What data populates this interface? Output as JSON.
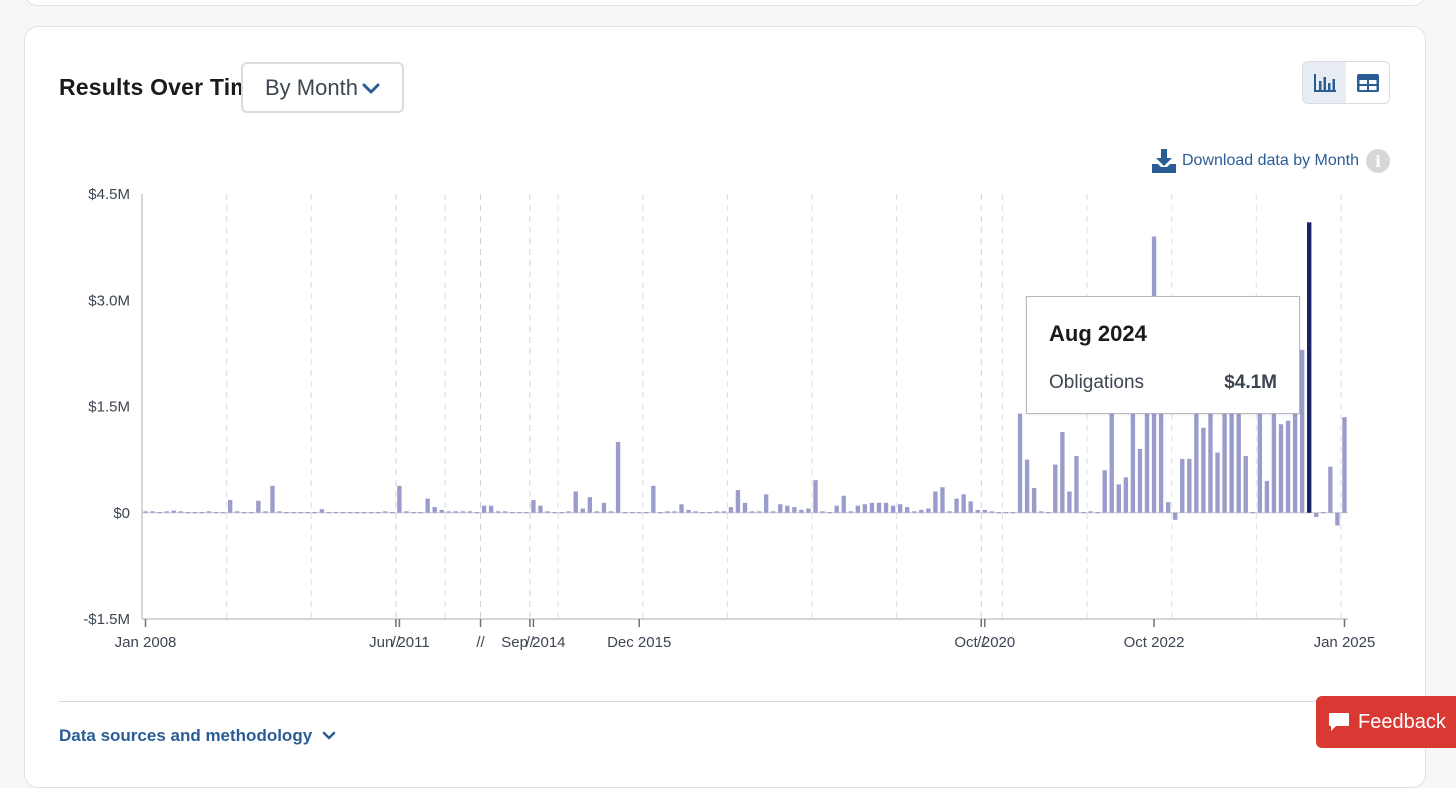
{
  "header": {
    "title": "Results Over Time",
    "period_selected": "By Month"
  },
  "toolbar": {
    "view_options": [
      "chart-view",
      "table-view"
    ],
    "download_label": "Download data by Month"
  },
  "tooltip": {
    "title": "Aug 2024",
    "label": "Obligations",
    "value": "$4.1M"
  },
  "footer": {
    "methodology_label": "Data sources and methodology",
    "feedback_label": "Feedback"
  },
  "colors": {
    "bar": "#9a9ccb",
    "bar_highlight": "#1a2366",
    "accent": "#2a5d95",
    "feedback": "#d83933"
  },
  "chart_data": {
    "type": "bar",
    "title": "",
    "ylabel": "",
    "xlabel": "",
    "ylim": [
      -1.5,
      4.5
    ],
    "y_unit": "$M",
    "y_ticks": [
      4.5,
      3.0,
      1.5,
      0,
      -1.5
    ],
    "y_tick_labels": [
      "$4.5M",
      "$3.0M",
      "$1.5M",
      "$0",
      "-$1.5M"
    ],
    "x_tick_labels": [
      "Jan 2008",
      "//",
      "//",
      "Jun 2011",
      "//",
      "//",
      "Sep 2014",
      "Dec 2015",
      "//",
      "//",
      "//",
      "//",
      "Oct 2020",
      "//",
      "Oct 2022",
      "//",
      "Jan 2025"
    ],
    "highlight": "Aug 2024",
    "grid": false,
    "series": [
      {
        "values": [
          0.02,
          0.02,
          0.01,
          0.02,
          0.03,
          0.02,
          0.01,
          0.01,
          0.01,
          0.02,
          0.01,
          0.01,
          0.18,
          0.02,
          0.01,
          0.01,
          0.17,
          0.02,
          0.38,
          0.02,
          0.01,
          0.01,
          0.01,
          0.01,
          0.01,
          0.05,
          0.01,
          0.01,
          0.01,
          0.01,
          0.01,
          0.01,
          0.01,
          0.01,
          0.02,
          0.01,
          0.38,
          0.02,
          0.01,
          0.01,
          0.2,
          0.08,
          0.04,
          0.02,
          0.02,
          0.02,
          0.02,
          0.01,
          0.1,
          0.1,
          0.02,
          0.02,
          0.01,
          0.01,
          0.01,
          0.18,
          0.1,
          0.02,
          0.01,
          0.01,
          0.02,
          0.3,
          0.06,
          0.22,
          0.02,
          0.14,
          0.02,
          1.0,
          0.01,
          0.01,
          0.01,
          0.01,
          0.38,
          0.01,
          0.02,
          0.02,
          0.12,
          0.04,
          0.02,
          0.01,
          0.01,
          0.02,
          0.02,
          0.08,
          0.32,
          0.14,
          0.02,
          0.02,
          0.26,
          0.02,
          0.12,
          0.1,
          0.08,
          0.04,
          0.06,
          0.46,
          0.02,
          0.01,
          0.1,
          0.24,
          0.02,
          0.1,
          0.12,
          0.14,
          0.14,
          0.14,
          0.1,
          0.12,
          0.08,
          0.02,
          0.04,
          0.06,
          0.3,
          0.36,
          0.02,
          0.2,
          0.26,
          0.16,
          0.04,
          0.04,
          0.02,
          0.01,
          0.01,
          0.01,
          1.4,
          0.75,
          0.35,
          0.02,
          0.01,
          0.68,
          1.14,
          0.3,
          0.8,
          0.01,
          0.02,
          0.01,
          0.6,
          1.4,
          0.4,
          0.5,
          1.4,
          0.9,
          1.4,
          3.9,
          1.4,
          0.15,
          -0.1,
          0.76,
          0.76,
          1.4,
          1.2,
          1.4,
          0.85,
          1.4,
          1.4,
          1.4,
          0.8,
          0.01,
          1.4,
          0.45,
          1.4,
          1.25,
          1.3,
          1.7,
          2.3,
          4.1,
          -0.06,
          0.01,
          0.65,
          -0.18,
          1.35
        ],
        "dates": [
          "2008-01",
          "2008-02",
          "2008-03",
          "2008-04",
          "2008-05",
          "2008-06",
          "2008-07",
          "2008-08",
          "2008-09",
          "2008-10",
          "2008-11",
          "2008-12",
          "2009-01",
          "2009-02",
          "2009-03",
          "2009-04",
          "2009-05",
          "2009-06",
          "2009-07",
          "2009-08",
          "2009-09",
          "2009-10",
          "2009-11",
          "2009-12",
          "2010-01",
          "2010-02",
          "2010-03",
          "2010-04",
          "2010-05",
          "2010-06",
          "2010-07",
          "2010-08",
          "2010-09",
          "2010-10",
          "2010-11",
          "2010-12",
          "2011-06",
          "2011-07",
          "2011-08",
          "2011-09",
          "2011-10",
          "2011-11",
          "2011-12",
          "2012-01",
          "2012-02",
          "2012-03",
          "2012-04",
          "2012-05",
          "2013-06",
          "2013-07",
          "2013-08",
          "2013-09",
          "2013-10",
          "2013-11",
          "2013-12",
          "2014-09",
          "2014-10",
          "2014-11",
          "2014-12",
          "2015-01",
          "2015-02",
          "2015-03",
          "2015-04",
          "2015-05",
          "2015-06",
          "2015-07",
          "2015-08",
          "2015-09",
          "2015-10",
          "2015-11",
          "2015-12",
          "2016-01",
          "2016-02",
          "2016-03",
          "2016-04",
          "2016-05",
          "2016-06",
          "2016-07",
          "2016-08",
          "2016-09",
          "2016-10",
          "2016-11",
          "2016-12",
          "2017-01",
          "2017-02",
          "2017-03",
          "2017-04",
          "2017-05",
          "2017-06",
          "2017-07",
          "2017-08",
          "2017-09",
          "2017-10",
          "2017-11",
          "2017-12",
          "2018-01",
          "2018-02",
          "2018-03",
          "2018-04",
          "2018-05",
          "2018-06",
          "2018-07",
          "2018-08",
          "2018-09",
          "2018-10",
          "2018-11",
          "2018-12",
          "2019-01",
          "2019-02",
          "2019-03",
          "2019-04",
          "2019-05",
          "2019-06",
          "2019-07",
          "2019-08",
          "2019-09",
          "2019-10",
          "2019-11",
          "2019-12",
          "2020-10",
          "2020-11",
          "2020-12",
          "2021-01",
          "2021-02",
          "2021-03",
          "2021-04",
          "2021-05",
          "2021-06",
          "2021-07",
          "2021-08",
          "2021-09",
          "2021-10",
          "2021-11",
          "2021-12",
          "2022-01",
          "2022-02",
          "2022-03",
          "2022-04",
          "2022-05",
          "2022-06",
          "2022-07",
          "2022-08",
          "2022-09",
          "2022-10",
          "2022-11",
          "2022-12",
          "2023-01",
          "2023-02",
          "2023-03",
          "2023-04",
          "2023-05",
          "2023-06",
          "2023-07",
          "2023-08",
          "2023-09",
          "2023-10",
          "2023-11",
          "2023-12",
          "2024-01",
          "2024-02",
          "2024-03",
          "2024-04",
          "2024-05",
          "2024-06",
          "2024-07",
          "2024-08",
          "2024-09",
          "2024-10",
          "2024-11",
          "2024-12",
          "2025-01"
        ]
      }
    ]
  }
}
